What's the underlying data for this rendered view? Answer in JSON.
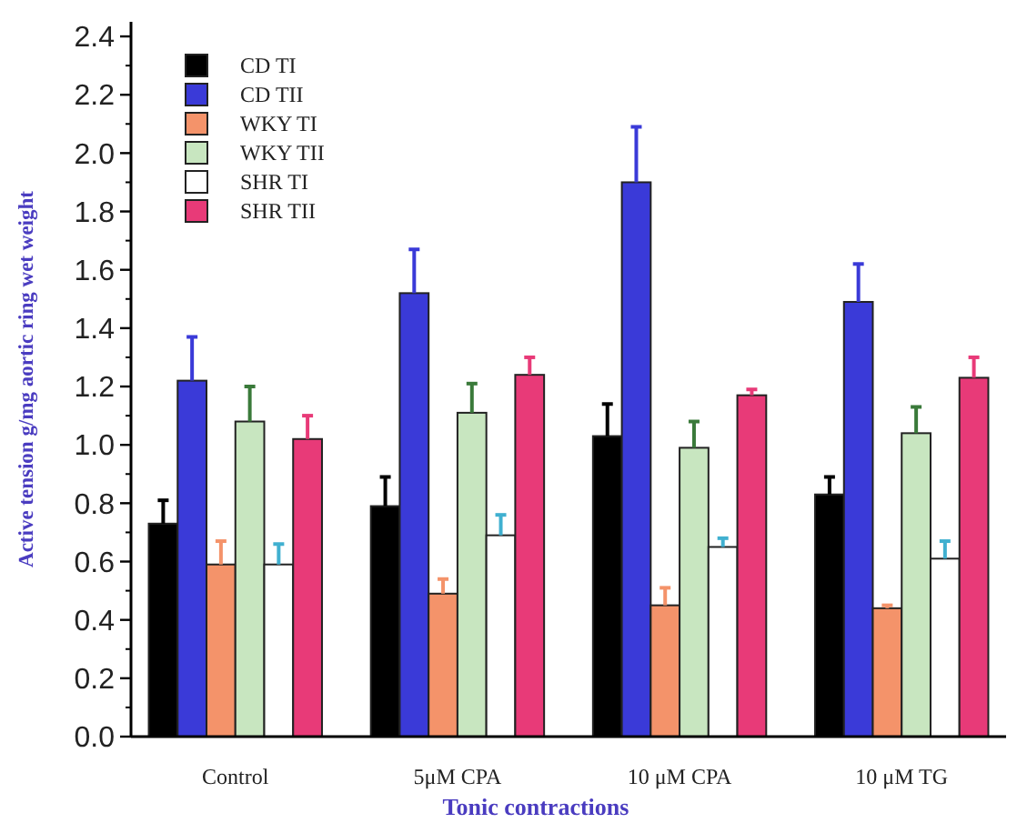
{
  "chart_data": {
    "type": "bar",
    "xlabel": "Tonic contractions",
    "ylabel": "Active tension g/mg aortic ring wet weight",
    "categories": [
      "Control",
      "5μM CPA",
      "10 μM CPA",
      "10 μM TG"
    ],
    "ylim": [
      0,
      2.45
    ],
    "yticks": [
      {
        "value": 0,
        "label": "0.0"
      },
      0.2,
      0.4,
      0.6,
      0.8,
      {
        "value": 1,
        "label": "1.0"
      },
      1.2,
      1.4,
      1.6,
      1.8,
      {
        "value": 2,
        "label": "2.0"
      },
      2.2,
      2.4
    ],
    "grid": false,
    "legend": "top left",
    "series": [
      {
        "name": "CD TI",
        "color": "#000000",
        "values": [
          0.73,
          0.79,
          1.03,
          0.83
        ],
        "errors": [
          0.08,
          0.1,
          0.11,
          0.06
        ]
      },
      {
        "name": "CD TII",
        "color": "#3a3ad8",
        "values": [
          1.22,
          1.52,
          1.9,
          1.49
        ],
        "errors": [
          0.15,
          0.15,
          0.19,
          0.13
        ]
      },
      {
        "name": "WKY TI",
        "color": "#f4936a",
        "values": [
          0.59,
          0.49,
          0.45,
          0.44
        ],
        "errors": [
          0.08,
          0.05,
          0.06,
          0.01
        ]
      },
      {
        "name": "WKY TII",
        "color": "#c8e6c0",
        "values": [
          1.08,
          1.11,
          0.99,
          1.04
        ],
        "errors": [
          0.12,
          0.1,
          0.09,
          0.09
        ]
      },
      {
        "name": "SHR TI",
        "color": "#ffffff",
        "values": [
          0.59,
          0.69,
          0.65,
          0.61
        ],
        "errors": [
          0.07,
          0.07,
          0.03,
          0.06
        ]
      },
      {
        "name": "SHR TII",
        "color": "#e83a78",
        "values": [
          1.02,
          1.24,
          1.17,
          1.23
        ],
        "errors": [
          0.08,
          0.06,
          0.02,
          0.07
        ]
      }
    ]
  }
}
